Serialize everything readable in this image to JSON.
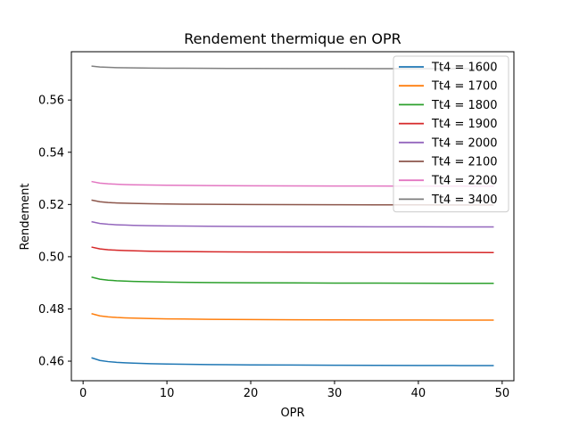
{
  "chart_data": {
    "type": "line",
    "title": "Rendement thermique en OPR",
    "xlabel": "OPR",
    "ylabel": "Rendement",
    "xlim": [
      -1.4,
      51.4
    ],
    "ylim": [
      0.4525,
      0.5785
    ],
    "xticks": [
      0,
      10,
      20,
      30,
      40,
      50
    ],
    "yticks": [
      0.46,
      0.48,
      0.5,
      0.52,
      0.54,
      0.56
    ],
    "ytick_labels": [
      "0.46",
      "0.48",
      "0.50",
      "0.52",
      "0.54",
      "0.56"
    ],
    "legend_position": "top-right",
    "grid": false,
    "x": [
      1,
      2,
      3,
      4,
      5,
      6,
      8,
      10,
      12,
      15,
      20,
      25,
      30,
      35,
      40,
      45,
      49
    ],
    "series": [
      {
        "name": "Tt4 = 1600",
        "color": "#1f77b4",
        "start": 0.4613,
        "end": 0.4583
      },
      {
        "name": "Tt4 = 1700",
        "color": "#ff7f0e",
        "start": 0.4782,
        "end": 0.4757
      },
      {
        "name": "Tt4 = 1800",
        "color": "#2ca02c",
        "start": 0.4922,
        "end": 0.4898
      },
      {
        "name": "Tt4 = 1900",
        "color": "#d62728",
        "start": 0.5037,
        "end": 0.5016
      },
      {
        "name": "Tt4 = 2000",
        "color": "#9467bd",
        "start": 0.5134,
        "end": 0.5114
      },
      {
        "name": "Tt4 = 2100",
        "color": "#8c564b",
        "start": 0.5217,
        "end": 0.5198
      },
      {
        "name": "Tt4 = 2200",
        "color": "#e377c2",
        "start": 0.5288,
        "end": 0.527
      },
      {
        "name": "Tt4 = 3400",
        "color": "#7f7f7f",
        "start": 0.573,
        "end": 0.572
      }
    ]
  }
}
